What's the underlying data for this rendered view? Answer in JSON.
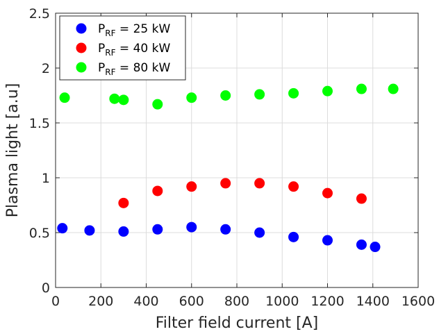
{
  "chart_data": {
    "type": "scatter",
    "xlabel": "Filter field current [A]",
    "ylabel": "Plasma light [a.u]",
    "xlim": [
      0,
      1600
    ],
    "ylim": [
      0,
      2.5
    ],
    "xticks": [
      "0",
      "200",
      "400",
      "600",
      "800",
      "1000",
      "1200",
      "1400",
      "1600"
    ],
    "yticks": [
      "0",
      "0.5",
      "1",
      "1.5",
      "2",
      "2.5"
    ],
    "grid": true,
    "legend_position": "top-left",
    "series": [
      {
        "name_main": "P",
        "name_sub": "RF",
        "name_rest": " = 25 kW",
        "color": "#0000ff",
        "x": [
          30,
          150,
          300,
          450,
          600,
          750,
          900,
          1050,
          1200,
          1350,
          1410
        ],
        "y": [
          0.54,
          0.52,
          0.51,
          0.53,
          0.55,
          0.53,
          0.5,
          0.46,
          0.43,
          0.39,
          0.37
        ]
      },
      {
        "name_main": "P",
        "name_sub": "RF",
        "name_rest": " = 40 kW",
        "color": "#ff0000",
        "x": [
          300,
          450,
          600,
          750,
          900,
          1050,
          1200,
          1350
        ],
        "y": [
          0.77,
          0.88,
          0.92,
          0.95,
          0.95,
          0.92,
          0.86,
          0.81
        ]
      },
      {
        "name_main": "P",
        "name_sub": "RF",
        "name_rest": " = 80 kW",
        "color": "#00ff00",
        "x": [
          40,
          260,
          300,
          450,
          600,
          750,
          900,
          1050,
          1200,
          1350,
          1490
        ],
        "y": [
          1.73,
          1.72,
          1.71,
          1.67,
          1.73,
          1.75,
          1.76,
          1.77,
          1.79,
          1.81,
          1.81
        ]
      }
    ]
  }
}
